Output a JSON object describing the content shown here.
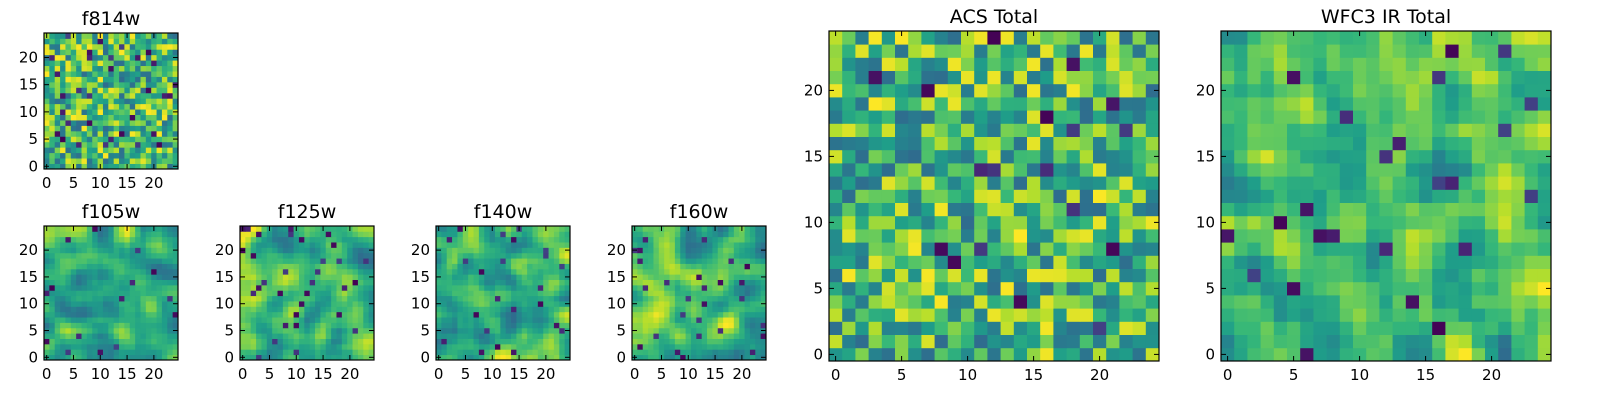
{
  "chart_data": [
    {
      "id": "f814w",
      "type": "heatmap",
      "title": "f814w",
      "colormap": "viridis",
      "grid_size": 25,
      "xticks": [
        0,
        5,
        10,
        15,
        20
      ],
      "yticks": [
        0,
        5,
        10,
        15,
        20
      ],
      "xlim": [
        -0.5,
        24.5
      ],
      "ylim": [
        -0.5,
        24.5
      ],
      "seed": 11,
      "smooth": 0
    },
    {
      "id": "f105w",
      "type": "heatmap",
      "title": "f105w",
      "colormap": "viridis",
      "grid_size": 25,
      "xticks": [
        0,
        5,
        10,
        15,
        20
      ],
      "yticks": [
        0,
        5,
        10,
        15,
        20
      ],
      "xlim": [
        -0.5,
        24.5
      ],
      "ylim": [
        -0.5,
        24.5
      ],
      "seed": 23,
      "smooth": 2
    },
    {
      "id": "f125w",
      "type": "heatmap",
      "title": "f125w",
      "colormap": "viridis",
      "grid_size": 25,
      "xticks": [
        0,
        5,
        10,
        15,
        20
      ],
      "yticks": [
        0,
        5,
        10,
        15,
        20
      ],
      "xlim": [
        -0.5,
        24.5
      ],
      "ylim": [
        -0.5,
        24.5
      ],
      "seed": 37,
      "smooth": 2
    },
    {
      "id": "f140w",
      "type": "heatmap",
      "title": "f140w",
      "colormap": "viridis",
      "grid_size": 25,
      "xticks": [
        0,
        5,
        10,
        15,
        20
      ],
      "yticks": [
        0,
        5,
        10,
        15,
        20
      ],
      "xlim": [
        -0.5,
        24.5
      ],
      "ylim": [
        -0.5,
        24.5
      ],
      "seed": 41,
      "smooth": 2
    },
    {
      "id": "f160w",
      "type": "heatmap",
      "title": "f160w",
      "colormap": "viridis",
      "grid_size": 25,
      "xticks": [
        0,
        5,
        10,
        15,
        20
      ],
      "yticks": [
        0,
        5,
        10,
        15,
        20
      ],
      "xlim": [
        -0.5,
        24.5
      ],
      "ylim": [
        -0.5,
        24.5
      ],
      "seed": 53,
      "smooth": 2
    },
    {
      "id": "acs-total",
      "type": "heatmap",
      "title": "ACS Total",
      "colormap": "viridis",
      "grid_size": 25,
      "xticks": [
        0,
        5,
        10,
        15,
        20
      ],
      "yticks": [
        0,
        5,
        10,
        15,
        20
      ],
      "xlim": [
        -0.5,
        24.5
      ],
      "ylim": [
        -0.5,
        24.5
      ],
      "seed": 67,
      "smooth": 0
    },
    {
      "id": "wfc3-ir-total",
      "type": "heatmap",
      "title": "WFC3 IR Total",
      "colormap": "viridis",
      "grid_size": 25,
      "xticks": [
        0,
        5,
        10,
        15,
        20
      ],
      "yticks": [
        0,
        5,
        10,
        15,
        20
      ],
      "xlim": [
        -0.5,
        24.5
      ],
      "ylim": [
        -0.5,
        24.5
      ],
      "seed": 79,
      "smooth": 1
    }
  ]
}
